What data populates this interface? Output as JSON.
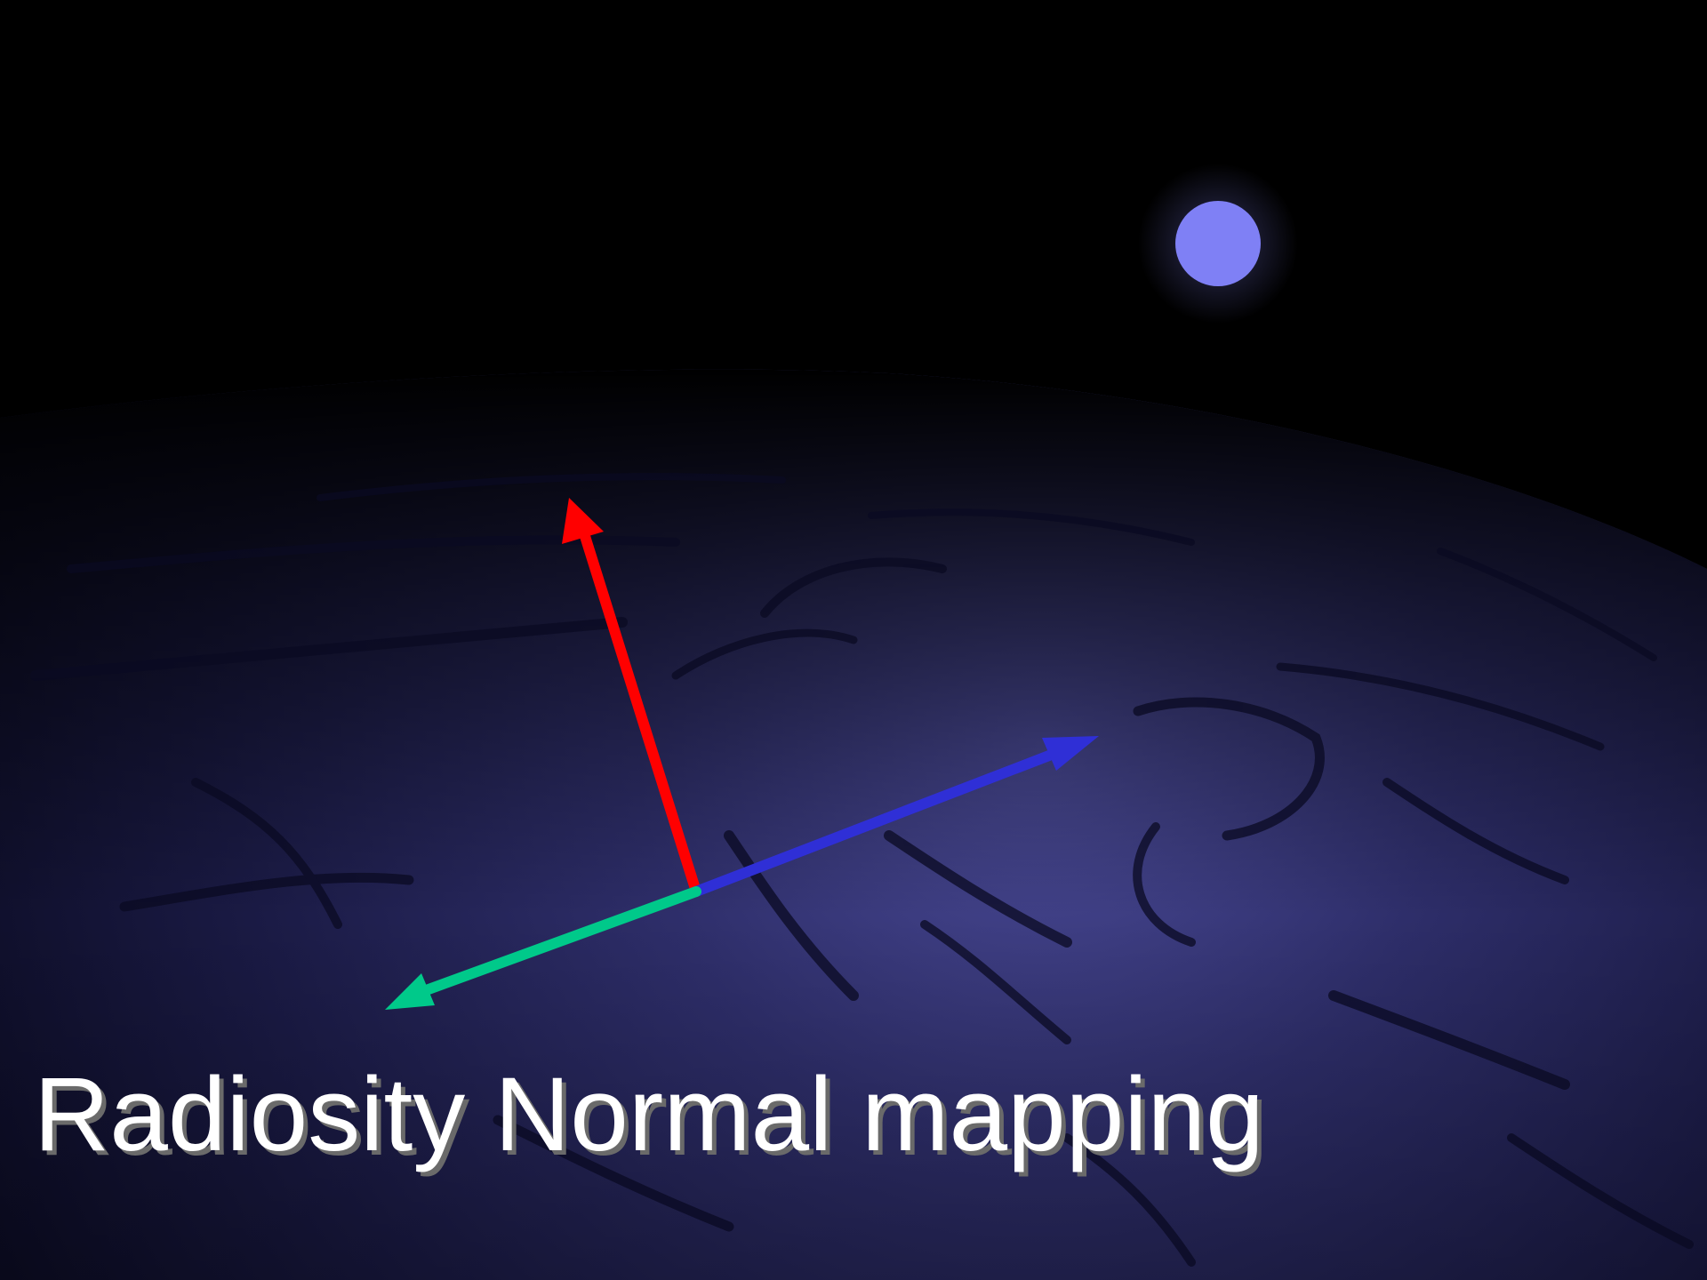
{
  "caption": "Radiosity Normal mapping",
  "colors": {
    "background": "#000000",
    "surface": "#3a3a78",
    "light": "#7f80f5",
    "arrow_up": "#ff0000",
    "arrow_right": "#2f2fd6",
    "arrow_left": "#00c98a",
    "caption_text": "#ffffff",
    "caption_shadow": "#6a6a6a"
  },
  "icons": {
    "light_source": "light-source-icon",
    "arrow_up": "red-basis-arrow",
    "arrow_right": "blue-basis-arrow",
    "arrow_left": "green-basis-arrow"
  }
}
